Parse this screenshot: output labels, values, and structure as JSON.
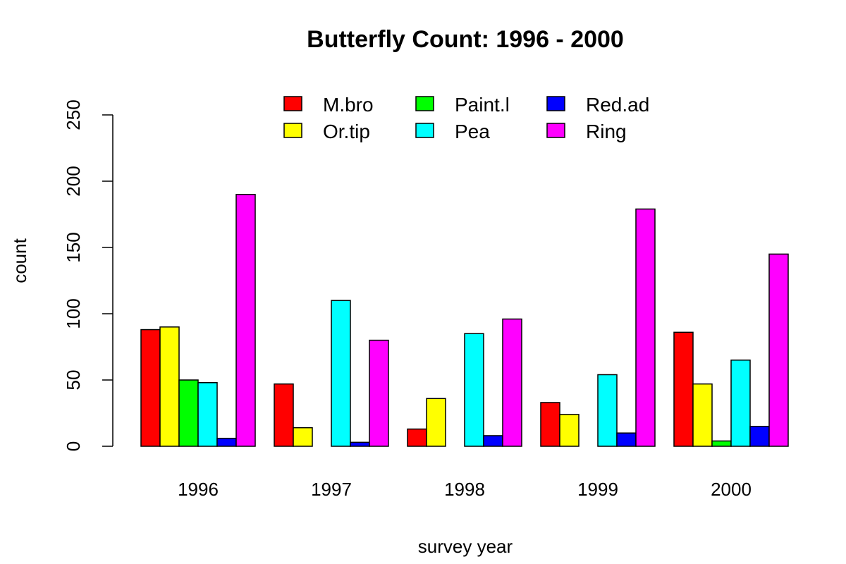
{
  "chart_data": {
    "type": "bar",
    "title": "Butterfly Count: 1996 - 2000",
    "xlabel": "survey year",
    "ylabel": "count",
    "ylim": [
      0,
      250
    ],
    "yticks": [
      0,
      50,
      100,
      150,
      200,
      250
    ],
    "categories": [
      "1996",
      "1997",
      "1998",
      "1999",
      "2000"
    ],
    "legend_position": "top",
    "legend_columns": 3,
    "grid": false,
    "series": [
      {
        "name": "M.bro",
        "color": "#FF0000",
        "values": [
          88,
          47,
          13,
          33,
          86
        ]
      },
      {
        "name": "Or.tip",
        "color": "#FFFF00",
        "values": [
          90,
          14,
          36,
          24,
          47
        ]
      },
      {
        "name": "Paint.l",
        "color": "#00FF00",
        "values": [
          50,
          0,
          0,
          0,
          4
        ]
      },
      {
        "name": "Pea",
        "color": "#00FFFF",
        "values": [
          48,
          110,
          85,
          54,
          65
        ]
      },
      {
        "name": "Red.ad",
        "color": "#0000FF",
        "values": [
          6,
          3,
          8,
          10,
          15
        ]
      },
      {
        "name": "Ring",
        "color": "#FF00FF",
        "values": [
          190,
          80,
          96,
          179,
          145
        ]
      }
    ]
  }
}
